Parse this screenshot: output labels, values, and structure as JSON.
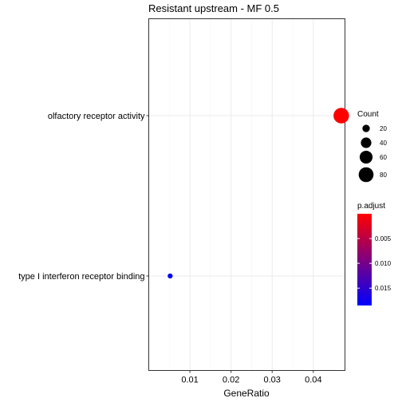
{
  "chart_data": {
    "type": "scatter",
    "title": "Resistant upstream - MF 0.5",
    "xlabel": "GeneRatio",
    "ylabel": "",
    "xlim": [
      0.0,
      0.0477
    ],
    "x_ticks": [
      0.01,
      0.02,
      0.03,
      0.04
    ],
    "x_tick_labels": [
      "0.01",
      "0.02",
      "0.03",
      "0.04"
    ],
    "categories": [
      "olfactory receptor activity",
      "type I interferon receptor binding"
    ],
    "points": [
      {
        "term": "olfactory receptor activity",
        "gene_ratio": 0.0468,
        "count": 88,
        "p_adjust": 2e-05
      },
      {
        "term": "type I interferon receptor binding",
        "gene_ratio": 0.0052,
        "count": 9,
        "p_adjust": 0.0182
      }
    ],
    "grid": true,
    "legend_placement": "right",
    "size_legend": {
      "title": "Count",
      "values": [
        20,
        40,
        60,
        80
      ],
      "labels": [
        "20",
        "40",
        "60",
        "80"
      ]
    },
    "color_legend": {
      "title": "p.adjust",
      "range": [
        0.0,
        0.0185
      ],
      "ticks": [
        0.005,
        0.01,
        0.015
      ],
      "tick_labels": [
        "0.005",
        "0.010",
        "0.015"
      ],
      "low_color": "#ff0000",
      "high_color": "#0000ff"
    },
    "colors": {
      "panel_border": "#333333",
      "grid": "#ebebeb"
    }
  }
}
